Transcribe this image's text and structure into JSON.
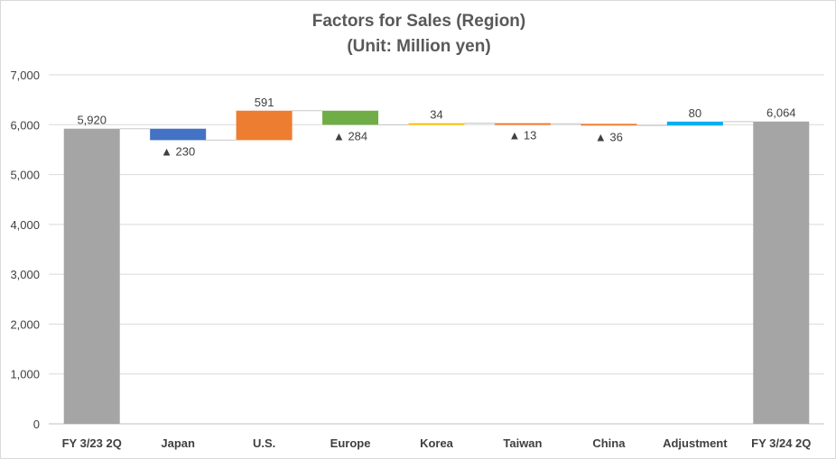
{
  "chart_data": {
    "type": "bar",
    "subtype": "waterfall",
    "title": "Factors for Sales (Region)",
    "subtitle": "(Unit: Million yen)",
    "xlabel": "",
    "ylabel": "",
    "ylim": [
      0,
      7000
    ],
    "yticks": [
      "0",
      "1,000",
      "2,000",
      "3,000",
      "4,000",
      "5,000",
      "6,000",
      "7,000"
    ],
    "ytick_values": [
      0,
      1000,
      2000,
      3000,
      4000,
      5000,
      6000,
      7000
    ],
    "grid": true,
    "categories": [
      "FY 3/23 2Q",
      "Japan",
      "U.S.",
      "Europe",
      "Korea",
      "Taiwan",
      "China",
      "Adjustment",
      "FY 3/24 2Q"
    ],
    "values": [
      5920,
      -230,
      591,
      -284,
      34,
      -13,
      -36,
      80,
      6064
    ],
    "kinds": [
      "total",
      "delta",
      "delta",
      "delta",
      "delta",
      "delta",
      "delta",
      "delta",
      "total"
    ],
    "data_labels": [
      "5,920",
      "▲ 230",
      "591",
      "▲ 284",
      "34",
      "▲ 13",
      "▲ 36",
      "80",
      "6,064"
    ],
    "colors": [
      "#a5a5a5",
      "#4472c4",
      "#ed7d31",
      "#70ad47",
      "#ffc000",
      "#ed7d31",
      "#ed7d31",
      "#00b0f0",
      "#a5a5a5"
    ]
  }
}
